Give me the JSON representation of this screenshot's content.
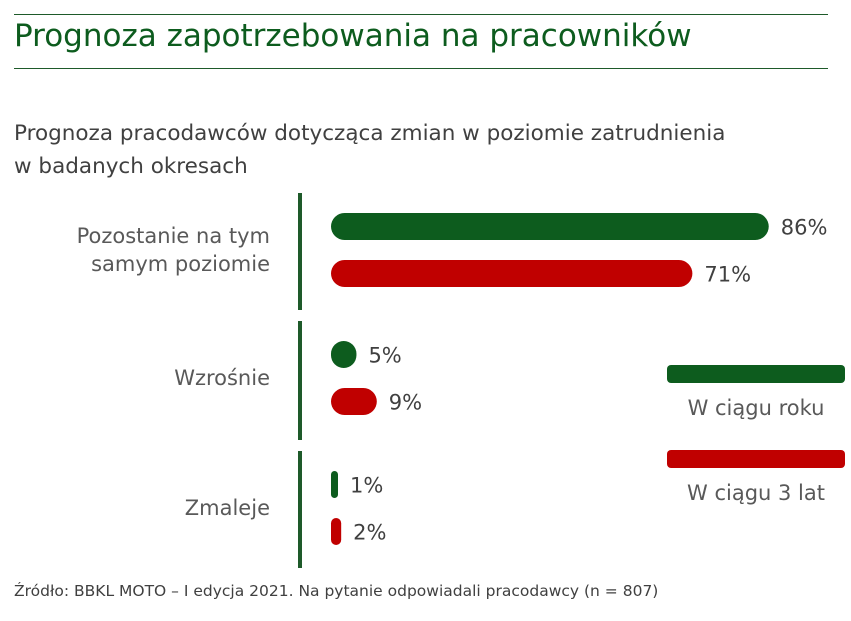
{
  "title": "Prognoza zapotrzebowania na pracowników",
  "subtitle": "Prognoza pracodawców dotycząca zmian w poziomie zatrudnienia w badanych okresach",
  "source": "Źródło: BBKL MOTO – I edycja 2021. Na pytanie odpowiadali pracodawcy (n = 807)",
  "colors": {
    "title": "#0d5c1e",
    "series_1": "#0d5c1e",
    "series_2": "#c00000",
    "axis": "#1e5a2a"
  },
  "chart_data": {
    "type": "bar",
    "orientation": "horizontal",
    "categories": [
      [
        "Pozostanie na tym",
        "samym poziomie"
      ],
      [
        "Wzrośnie"
      ],
      [
        "Zmaleje"
      ]
    ],
    "series": [
      {
        "name": "W ciągu roku",
        "values": [
          86,
          5,
          1
        ],
        "labels": [
          "86%",
          "5%",
          "1%"
        ]
      },
      {
        "name": "W ciągu 3 lat",
        "values": [
          71,
          9,
          2
        ],
        "labels": [
          "71%",
          "9%",
          "2%"
        ]
      }
    ],
    "unit": "%",
    "xlim": [
      0,
      100
    ],
    "grid": false,
    "legend_position": "right"
  }
}
